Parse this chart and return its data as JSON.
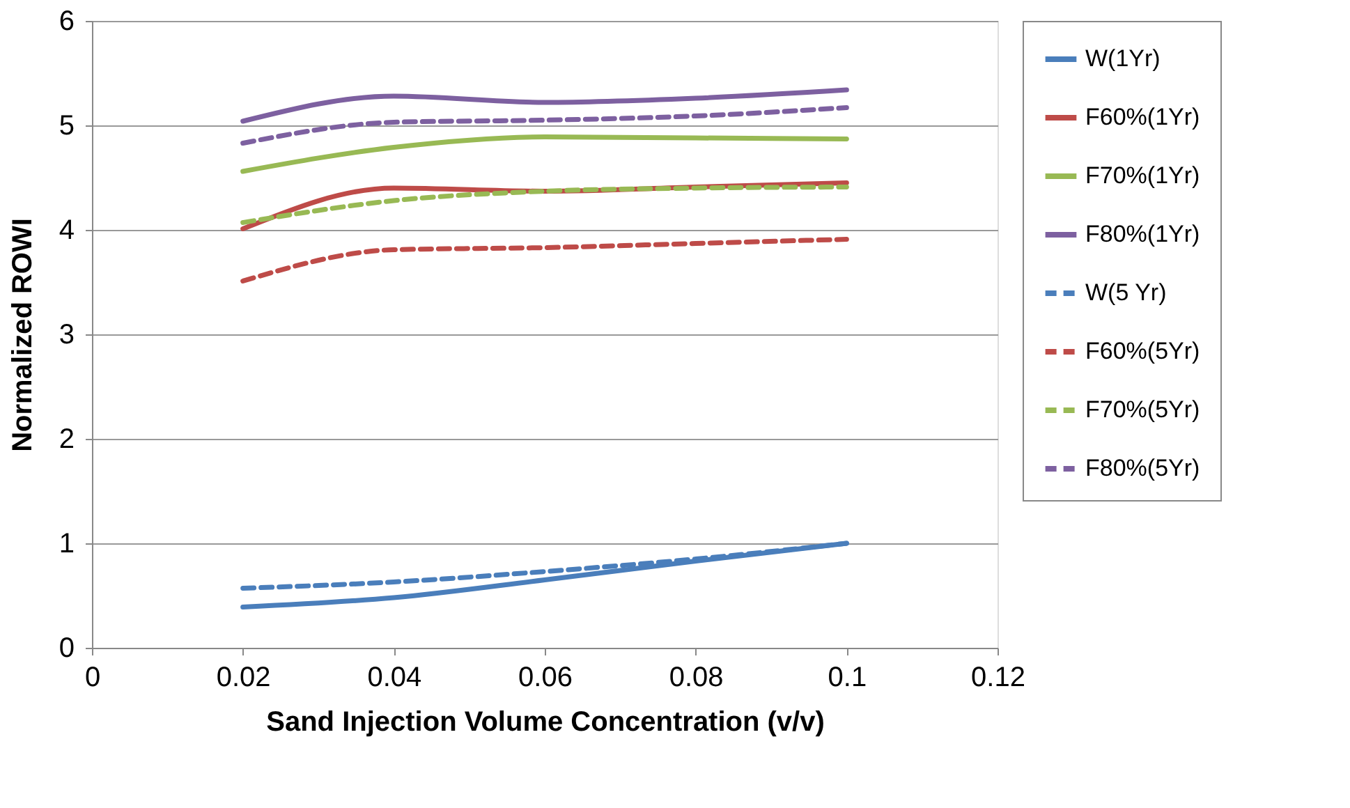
{
  "chart_data": {
    "type": "line",
    "xlabel": "Sand Injection Volume Concentration (v/v)",
    "ylabel": "Normalized ROWI",
    "x": [
      0.02,
      0.04,
      0.06,
      0.08,
      0.1
    ],
    "xlim": [
      0,
      0.12
    ],
    "xticks": [
      0,
      0.02,
      0.04,
      0.06,
      0.08,
      0.1,
      0.12
    ],
    "ylim": [
      0,
      6
    ],
    "yticks": [
      0,
      1,
      2,
      3,
      4,
      5,
      6
    ],
    "grid": "y",
    "legend": "right",
    "marker": "none",
    "series": [
      {
        "name": "W(1Yr)",
        "color": "#4a7ebb",
        "line_style": "solid",
        "values": [
          0.39,
          0.48,
          0.65,
          0.83,
          1.0
        ]
      },
      {
        "name": "F60%(1Yr)",
        "color": "#be4b48",
        "line_style": "solid",
        "values": [
          4.01,
          4.4,
          4.37,
          4.41,
          4.45
        ]
      },
      {
        "name": "F70%(1Yr)",
        "color": "#98b954",
        "line_style": "solid",
        "values": [
          4.56,
          4.79,
          4.89,
          4.88,
          4.87
        ]
      },
      {
        "name": "F80%(1Yr)",
        "color": "#7d60a0",
        "line_style": "solid",
        "values": [
          5.04,
          5.28,
          5.22,
          5.26,
          5.34
        ]
      },
      {
        "name": "W(5 Yr)",
        "color": "#4a7ebb",
        "line_style": "dashed",
        "values": [
          0.57,
          0.63,
          0.73,
          0.85,
          1.0
        ]
      },
      {
        "name": "F60%(5Yr)",
        "color": "#be4b48",
        "line_style": "dashed",
        "values": [
          3.51,
          3.81,
          3.83,
          3.87,
          3.91
        ]
      },
      {
        "name": "F70%(5Yr)",
        "color": "#98b954",
        "line_style": "dashed",
        "values": [
          4.07,
          4.28,
          4.37,
          4.4,
          4.41
        ]
      },
      {
        "name": "F80%(5Yr)",
        "color": "#7d60a0",
        "line_style": "dashed",
        "values": [
          4.83,
          5.03,
          5.05,
          5.09,
          5.17
        ]
      }
    ]
  }
}
